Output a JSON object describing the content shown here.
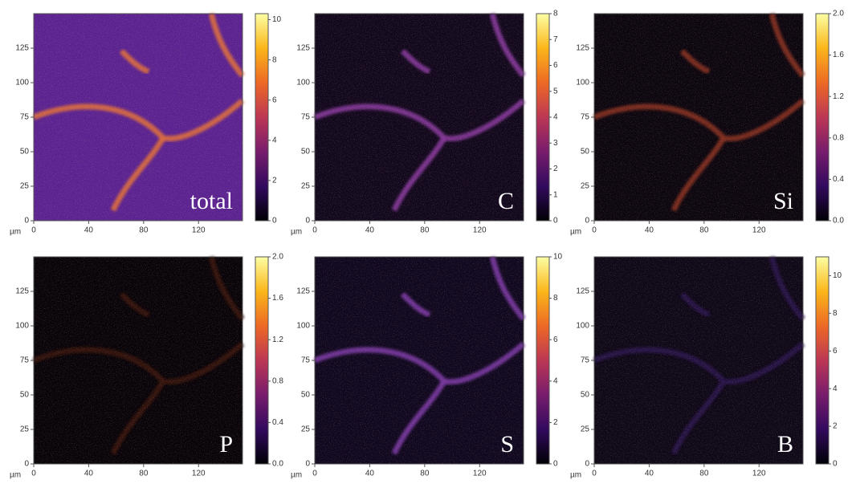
{
  "chart_data": [
    {
      "type": "heatmap",
      "label": "total",
      "x_unit": "µm",
      "xlim": [
        0,
        152
      ],
      "xticks": [
        0,
        40,
        80,
        120
      ],
      "ylim": [
        0,
        150
      ],
      "yticks": [
        0,
        25,
        50,
        75,
        100,
        125
      ],
      "colormap": "inferno",
      "image_color": "#5b2391",
      "filament_color": "#e0703a",
      "clim": [
        0,
        10.3
      ],
      "cticks": [
        0,
        2,
        4,
        6,
        8,
        10
      ]
    },
    {
      "type": "heatmap",
      "label": "C",
      "x_unit": "µm",
      "xlim": [
        0,
        152
      ],
      "xticks": [
        0,
        40,
        80,
        120
      ],
      "ylim": [
        0,
        150
      ],
      "yticks": [
        0,
        25,
        50,
        75,
        100,
        125
      ],
      "colormap": "inferno",
      "image_color": "#12081e",
      "filament_color": "#8a3aa0",
      "clim": [
        0,
        8
      ],
      "cticks": [
        0,
        1,
        2,
        3,
        4,
        5,
        6,
        7,
        8
      ]
    },
    {
      "type": "heatmap",
      "label": "Si",
      "x_unit": "µm",
      "xlim": [
        0,
        152
      ],
      "xticks": [
        0,
        40,
        80,
        120
      ],
      "ylim": [
        0,
        150
      ],
      "yticks": [
        0,
        25,
        50,
        75,
        100,
        125
      ],
      "colormap": "inferno",
      "image_color": "#0c0610",
      "filament_color": "#8a3020",
      "clim": [
        0,
        2.0
      ],
      "cticks": [
        {
          "value": 0,
          "label": "0.0"
        },
        {
          "value": 0.4,
          "label": "0.4"
        },
        {
          "value": 0.8,
          "label": "0.8"
        },
        {
          "value": 1.2,
          "label": "1.2"
        },
        {
          "value": 1.6,
          "label": "1.6"
        },
        {
          "value": 2.0,
          "label": "2.0"
        }
      ]
    },
    {
      "type": "heatmap",
      "label": "P",
      "x_unit": "µm",
      "xlim": [
        0,
        152
      ],
      "xticks": [
        0,
        40,
        80,
        120
      ],
      "ylim": [
        0,
        150
      ],
      "yticks": [
        0,
        25,
        50,
        75,
        100,
        125
      ],
      "colormap": "inferno",
      "image_color": "#08040a",
      "filament_color": "#3a1210",
      "clim": [
        0,
        2.0
      ],
      "cticks": [
        {
          "value": 0,
          "label": "0.0"
        },
        {
          "value": 0.4,
          "label": "0.4"
        },
        {
          "value": 0.8,
          "label": "0.8"
        },
        {
          "value": 1.2,
          "label": "1.2"
        },
        {
          "value": 1.6,
          "label": "1.6"
        },
        {
          "value": 2.0,
          "label": "2.0"
        }
      ]
    },
    {
      "type": "heatmap",
      "label": "S",
      "x_unit": "µm",
      "xlim": [
        0,
        152
      ],
      "xticks": [
        0,
        40,
        80,
        120
      ],
      "ylim": [
        0,
        150
      ],
      "yticks": [
        0,
        25,
        50,
        75,
        100,
        125
      ],
      "colormap": "inferno",
      "image_color": "#100820",
      "filament_color": "#7e3aa8",
      "clim": [
        0,
        10
      ],
      "cticks": [
        0,
        2,
        4,
        6,
        8,
        10
      ]
    },
    {
      "type": "heatmap",
      "label": "B",
      "x_unit": "µm",
      "xlim": [
        0,
        152
      ],
      "xticks": [
        0,
        40,
        80,
        120
      ],
      "ylim": [
        0,
        150
      ],
      "yticks": [
        0,
        25,
        50,
        75,
        100,
        125
      ],
      "colormap": "inferno",
      "image_color": "#0e0818",
      "filament_color": "#2a1450",
      "clim": [
        0,
        11
      ],
      "cticks": [
        0,
        2,
        4,
        6,
        8,
        10
      ]
    }
  ]
}
